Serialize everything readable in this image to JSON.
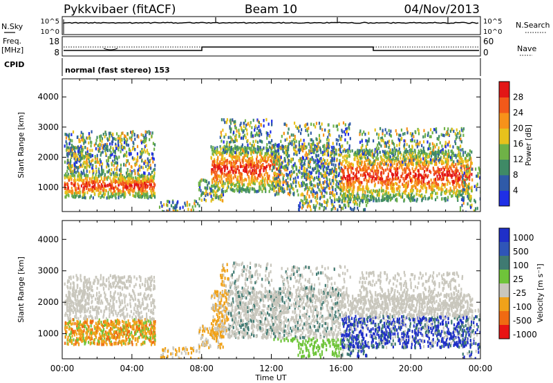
{
  "header": {
    "station": "Pykkvibaer (fitACF)",
    "beam": "Beam 10",
    "date": "04/Nov/2013"
  },
  "status_panels": {
    "nsky_label": "N.Sky",
    "nsky_ticks": [
      "10^5",
      "10^0"
    ],
    "nsearch_label": "N.Search",
    "freq_label_1": "Freq.",
    "freq_label_2": "[MHz]",
    "freq_ticks": [
      "18",
      "8"
    ],
    "nave_ticks": [
      "60",
      "0"
    ],
    "nave_label": "Nave",
    "cpid_label": "CPID",
    "cpid_text": "normal (fast stereo) 153"
  },
  "chart_data": [
    {
      "type": "heatmap",
      "name": "Power",
      "ylabel": "Slant Range [km]",
      "colorbar_label": "Power [dB]",
      "yticks": [
        1000,
        2000,
        3000,
        4000
      ],
      "colorbar_ticks": [
        4,
        8,
        12,
        16,
        20,
        24,
        28
      ],
      "colorbar_colors": [
        "#1f2fe6",
        "#2f5aa8",
        "#3f8a66",
        "#6fb247",
        "#e8c21c",
        "#f7921a",
        "#f2591a",
        "#e31616"
      ],
      "ylim": [
        200,
        4600
      ],
      "xlim": [
        0,
        24
      ]
    },
    {
      "type": "heatmap",
      "name": "Velocity",
      "ylabel": "Slant Range [km]",
      "colorbar_label": "Velocity [m s⁻¹]",
      "xlabel": "Time UT",
      "yticks": [
        1000,
        2000,
        3000,
        4000
      ],
      "colorbar_ticks": [
        1000,
        500,
        100,
        25,
        -25,
        -100,
        -500,
        -1000
      ],
      "colorbar_colors": [
        "#1f2fc8",
        "#2f55b8",
        "#3f7a72",
        "#6fc43a",
        "#c9c7bd",
        "#f0a21a",
        "#f06a12",
        "#e81414"
      ],
      "xticks": [
        "00:00",
        "04:00",
        "08:00",
        "12:00",
        "16:00",
        "20:00",
        "00:00"
      ],
      "ylim": [
        200,
        4600
      ],
      "xlim": [
        0,
        24
      ]
    }
  ]
}
